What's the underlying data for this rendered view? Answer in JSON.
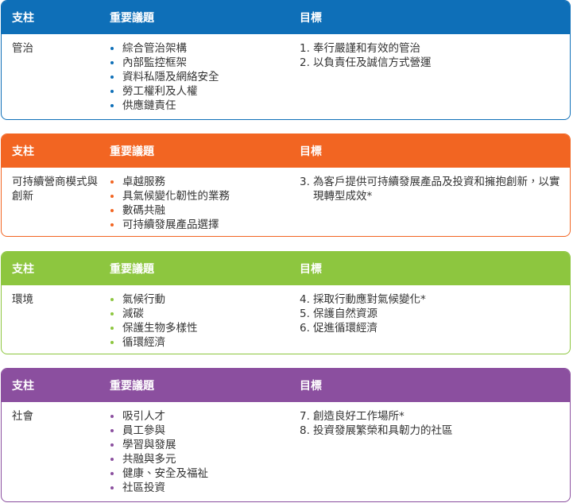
{
  "header": {
    "pillar": "支柱",
    "topics": "重要議題",
    "goals": "目標"
  },
  "panels": [
    {
      "pillar": "管治",
      "topics": [
        "綜合管治架構",
        "內部監控框架",
        "資料私隱及網絡安全",
        "勞工權利及人權",
        "供應鏈責任"
      ],
      "goals": [
        {
          "number": "1.",
          "text": "奉行嚴謹和有效的管治"
        },
        {
          "number": "2.",
          "text": "以負責任及誠信方式營運"
        }
      ]
    },
    {
      "pillar": "可持續營商模式與創新",
      "topics": [
        "卓越服務",
        "具氣候變化韌性的業務",
        "數碼共融",
        "可持續發展產品選擇"
      ],
      "goals": [
        {
          "number": "3.",
          "text": "為客戶提供可持續發展產品及投資和擁抱創新，以實現轉型成效*"
        }
      ]
    },
    {
      "pillar": "環境",
      "topics": [
        "氣候行動",
        "減碳",
        "保護生物多樣性",
        "循環經濟"
      ],
      "goals": [
        {
          "number": "4.",
          "text": "採取行動應對氣候變化*"
        },
        {
          "number": "5.",
          "text": "保護自然資源"
        },
        {
          "number": "6.",
          "text": "促進循環經濟"
        }
      ]
    },
    {
      "pillar": "社會",
      "topics": [
        "吸引人才",
        "員工參與",
        "學習與發展",
        "共融與多元",
        "健康、安全及福祉",
        "社區投資"
      ],
      "goals": [
        {
          "number": "7.",
          "text": "創造良好工作場所*"
        },
        {
          "number": "8.",
          "text": "投資發展繁榮和具韌力的社區"
        }
      ]
    }
  ]
}
